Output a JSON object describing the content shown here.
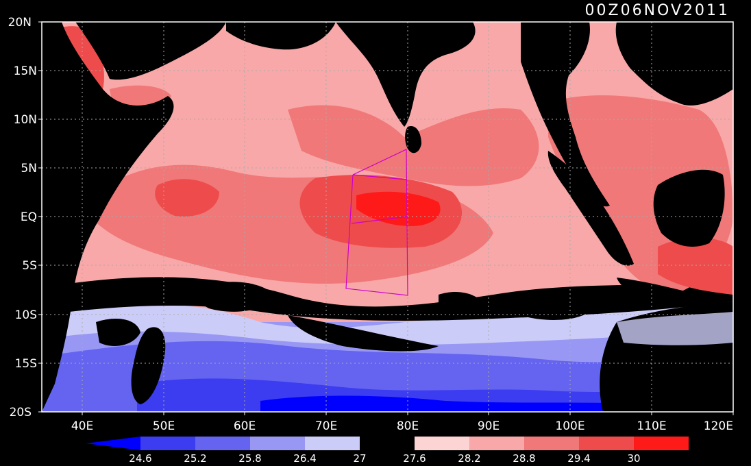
{
  "title": "00Z06NOV2011",
  "lat_labels": [
    "20N",
    "15N",
    "10N",
    "5N",
    "EQ",
    "5S",
    "10S",
    "15S",
    "20S"
  ],
  "lon_labels": [
    "40E",
    "50E",
    "60E",
    "70E",
    "80E",
    "90E",
    "100E",
    "110E",
    "120E"
  ],
  "colorbar": {
    "labels": [
      "24.6",
      "25.2",
      "25.8",
      "26.4",
      "27",
      "27.6",
      "28.2",
      "28.8",
      "29.4",
      "30"
    ],
    "colors": [
      "#0000ff",
      "#3c3cf0",
      "#6464f0",
      "#9898f4",
      "#ccccf8",
      "#000000",
      "#fcd4d4",
      "#f8a8a8",
      "#f07878",
      "#ee4c4c",
      "#ff1a1a",
      "#ff0000"
    ]
  },
  "colors": {
    "land": "#000000",
    "grid": "#aaaaaa",
    "box_outline": "#cc00cc",
    "frame": "#ffffff"
  }
}
